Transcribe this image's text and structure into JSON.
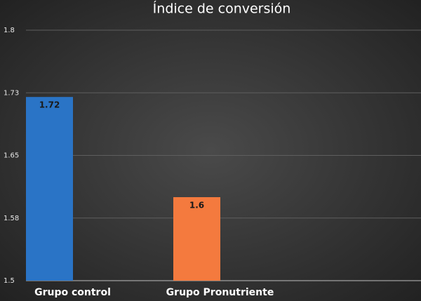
{
  "chart_data": {
    "type": "bar",
    "title": "Índice de conversión",
    "categories": [
      "Grupo control",
      "Grupo Pronutriente"
    ],
    "values": [
      1.72,
      1.6
    ],
    "colors": [
      "#2a74c6",
      "#f47a3e"
    ],
    "ylim": [
      1.5,
      1.8
    ],
    "yticks": [
      1.5,
      {
        "value": 1.575,
        "label": "1.58"
      },
      1.65,
      {
        "value": 1.725,
        "label": "1.73"
      },
      1.8
    ],
    "grid": true
  }
}
